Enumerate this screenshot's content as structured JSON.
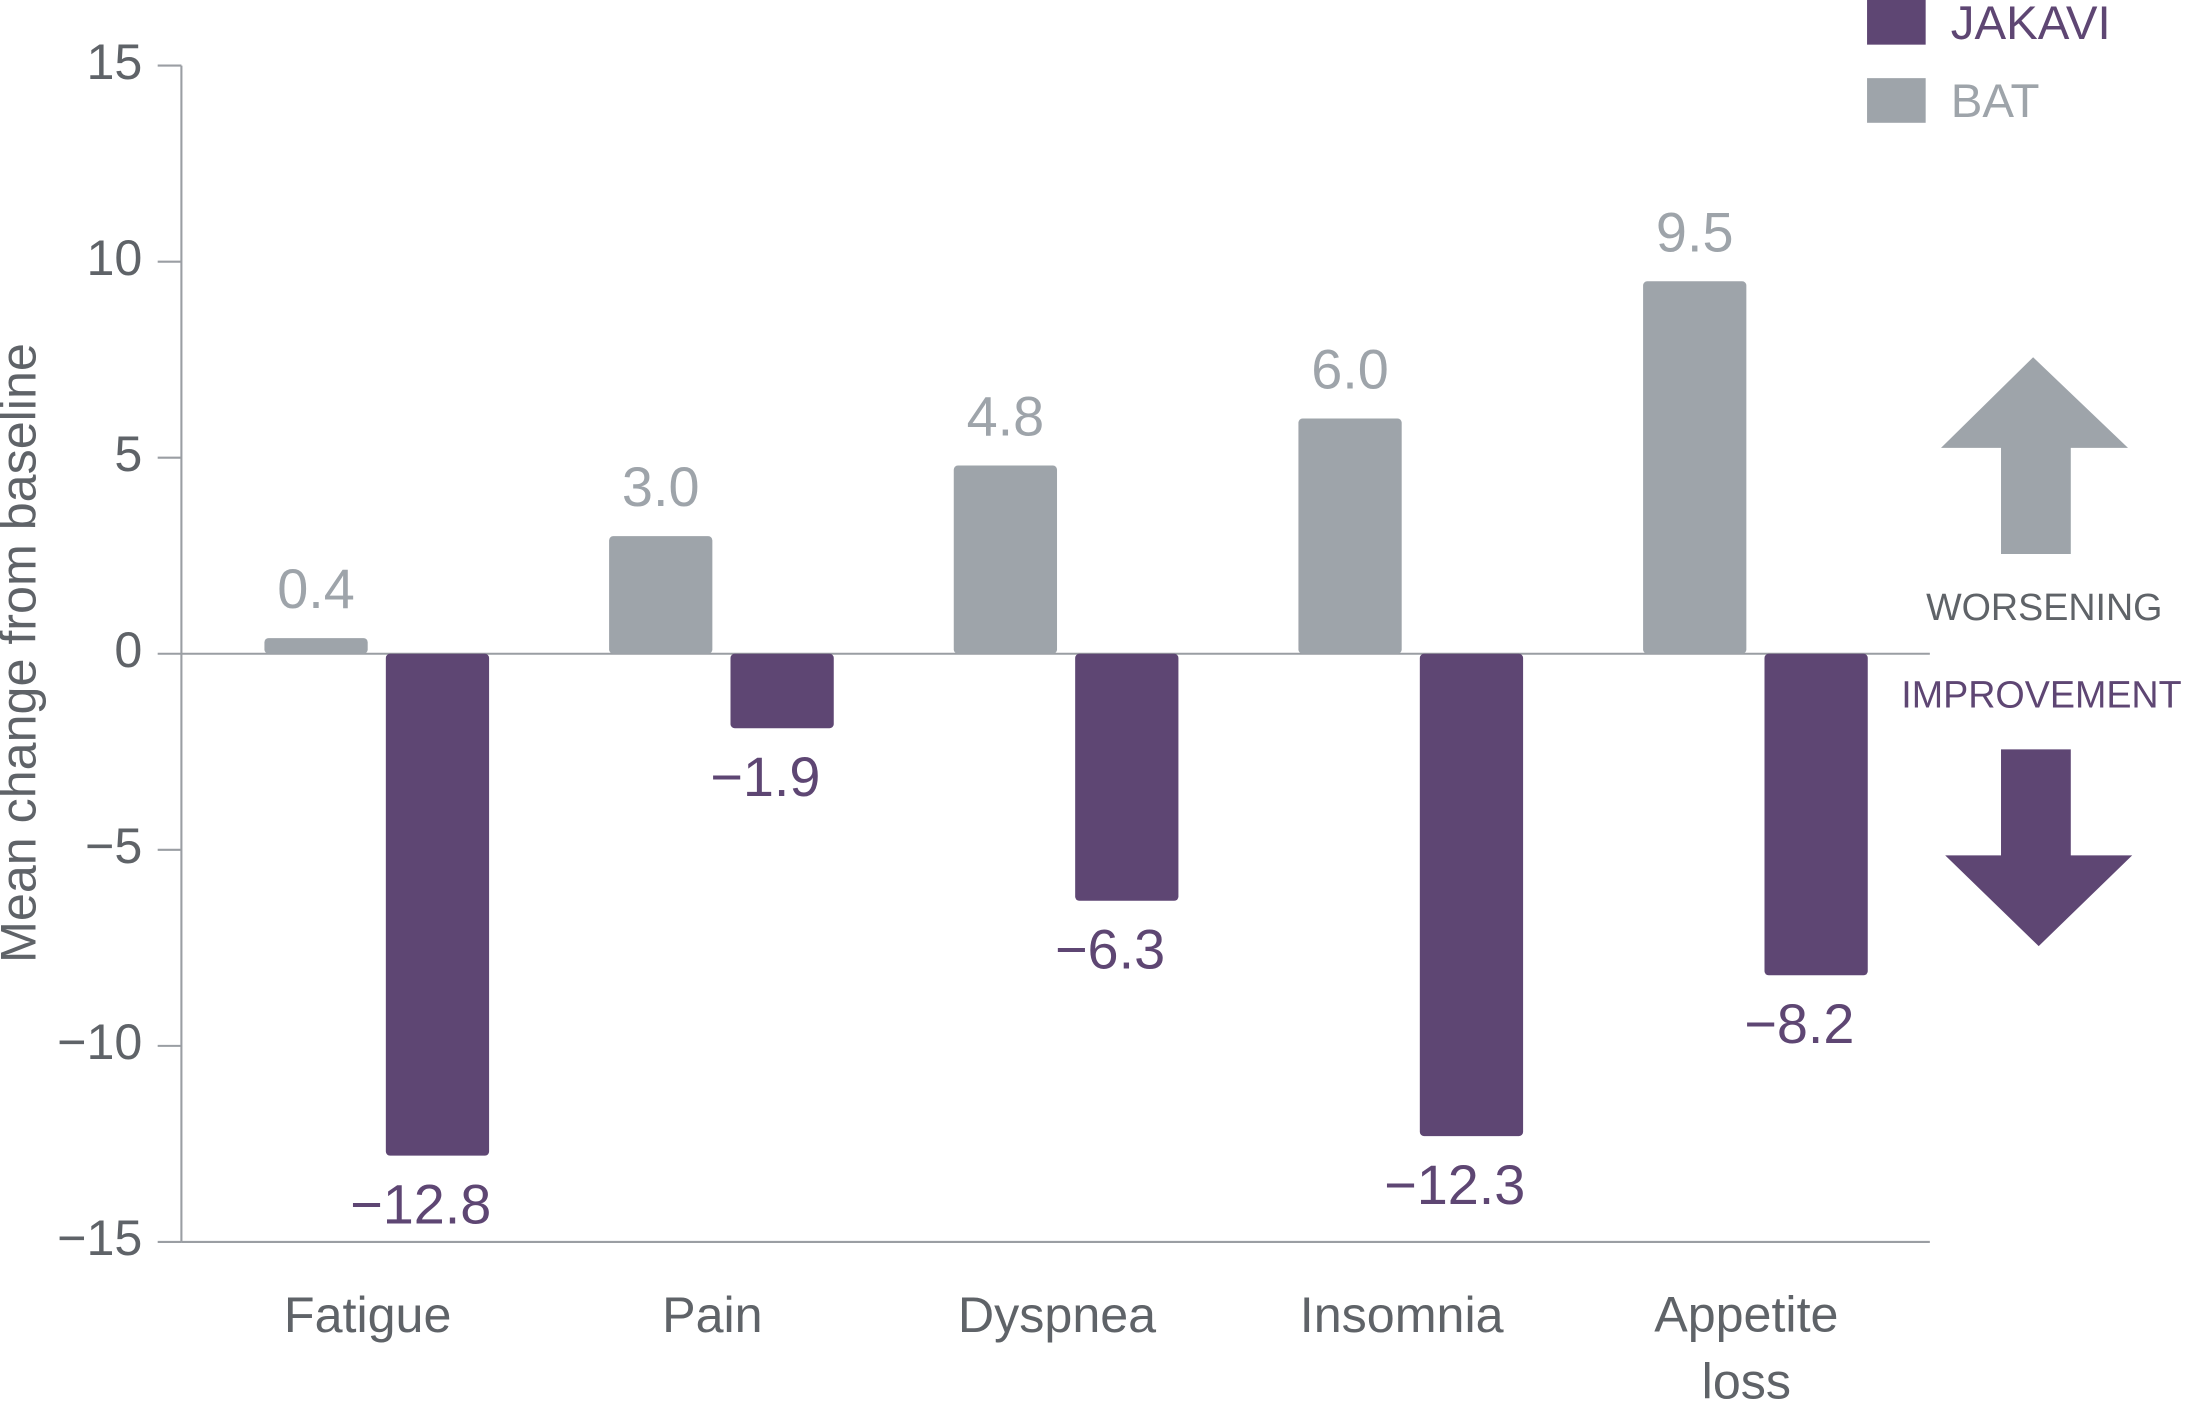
{
  "chart_data": {
    "type": "bar",
    "y_label": "Mean change from baseline",
    "categories": [
      "Fatigue",
      "Pain",
      "Dyspnea",
      "Insomnia",
      "Appetite loss"
    ],
    "series": [
      {
        "name": "BAT",
        "color": "#9ea4aa",
        "values": [
          0.4,
          3.0,
          4.8,
          6.0,
          9.5
        ],
        "value_labels": [
          "0.4",
          "3.0",
          "4.8",
          "6.0",
          "9.5"
        ]
      },
      {
        "name": "JAKAVI",
        "color": "#5e4673",
        "values": [
          -12.8,
          -1.9,
          -6.3,
          -12.3,
          -8.2
        ],
        "value_labels": [
          "−12.8",
          "−1.9",
          "−6.3",
          "−12.3",
          "−8.2"
        ]
      }
    ],
    "legend_order": [
      "JAKAVI",
      "BAT"
    ],
    "ylim": [
      -15,
      15
    ],
    "yticks": [
      15,
      10,
      5,
      0,
      {
        "value": -5,
        "label": "−5"
      },
      {
        "value": -10,
        "label": "−10"
      },
      {
        "value": -15,
        "label": "−15"
      }
    ],
    "annotations": {
      "worsening": "WORSENING",
      "improvement": "IMPROVEMENT"
    },
    "grid": false
  }
}
